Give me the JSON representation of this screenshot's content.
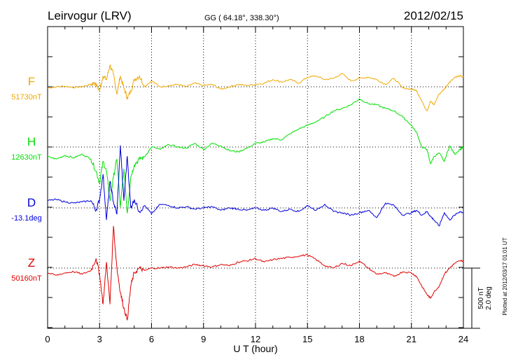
{
  "header": {
    "station": "Leirvogur (LRV)",
    "coords": "GG ( 64.18°, 338.30°)",
    "date": "2012/02/15"
  },
  "footer": {
    "plotted": "Plotted at 2012/03/17 01:01 UT"
  },
  "chart_data": {
    "type": "line",
    "xlabel": "U T (hour)",
    "xlim": [
      0,
      24
    ],
    "xticks": [
      "0",
      "3",
      "6",
      "9",
      "12",
      "15",
      "18",
      "21",
      "24"
    ],
    "scale_bar": {
      "nT": "500 nT",
      "deg": "2.0 deg"
    },
    "colors": {
      "F": "#f0a800",
      "H": "#00e000",
      "D": "#0000dd",
      "Z": "#e00000"
    },
    "series": [
      {
        "name": "F",
        "baseline": "51730nT",
        "x": [
          0,
          0.5,
          1,
          1.5,
          2,
          2.5,
          2.7,
          3,
          3.2,
          3.4,
          3.6,
          3.8,
          4,
          4.2,
          4.4,
          4.6,
          4.8,
          5,
          5.3,
          5.6,
          6,
          6.5,
          7,
          7.5,
          8,
          8.5,
          9,
          9.5,
          10,
          10.5,
          11,
          11.5,
          12,
          12.5,
          13,
          13.5,
          14,
          14.5,
          15,
          15.5,
          16,
          16.5,
          17,
          17.5,
          18,
          18.5,
          19,
          19.5,
          20,
          20.5,
          21,
          21.3,
          21.6,
          21.9,
          22.1,
          22.3,
          22.6,
          22.9,
          23.2,
          23.5,
          23.8,
          24
        ],
        "values": [
          -10,
          0,
          5,
          -5,
          0,
          20,
          35,
          -30,
          90,
          60,
          180,
          100,
          -60,
          90,
          -10,
          -90,
          -40,
          60,
          90,
          0,
          50,
          0,
          10,
          20,
          0,
          30,
          10,
          20,
          -20,
          0,
          20,
          10,
          20,
          30,
          60,
          40,
          60,
          30,
          80,
          90,
          60,
          70,
          110,
          50,
          70,
          80,
          60,
          20,
          70,
          -10,
          -20,
          -30,
          -120,
          -200,
          -120,
          -150,
          -60,
          -20,
          40,
          80,
          90,
          80
        ]
      },
      {
        "name": "H",
        "baseline": "12630nT",
        "x": [
          0,
          0.5,
          1,
          1.5,
          2,
          2.5,
          2.8,
          3,
          3.2,
          3.4,
          3.6,
          3.8,
          4,
          4.2,
          4.4,
          4.6,
          4.8,
          5,
          5.3,
          5.6,
          6,
          6.5,
          7,
          7.5,
          8,
          8.5,
          9,
          9.5,
          10,
          10.5,
          11,
          11.5,
          12,
          12.5,
          13,
          13.5,
          14,
          14.5,
          15,
          15.5,
          16,
          16.5,
          17,
          17.5,
          18,
          18.5,
          19,
          19.5,
          20,
          20.5,
          21,
          21.3,
          21.6,
          21.9,
          22.1,
          22.3,
          22.6,
          22.9,
          23.2,
          23.5,
          23.8,
          24
        ],
        "values": [
          -80,
          -100,
          -70,
          -90,
          -60,
          -100,
          -200,
          -300,
          -120,
          -200,
          -450,
          -250,
          -100,
          -500,
          -180,
          -550,
          -250,
          -150,
          -100,
          -80,
          0,
          -20,
          20,
          0,
          -10,
          30,
          -20,
          30,
          10,
          -30,
          -40,
          -10,
          30,
          40,
          70,
          60,
          110,
          150,
          180,
          210,
          250,
          300,
          320,
          350,
          400,
          360,
          350,
          320,
          300,
          250,
          180,
          120,
          0,
          -20,
          -140,
          -80,
          -50,
          -120,
          10,
          -60,
          -20,
          0
        ]
      },
      {
        "name": "D",
        "baseline": "-13.1deg",
        "x": [
          0,
          0.5,
          1,
          1.5,
          2,
          2.5,
          2.8,
          3,
          3.2,
          3.4,
          3.6,
          3.8,
          4,
          4.2,
          4.4,
          4.6,
          4.8,
          5,
          5.3,
          5.6,
          6,
          6.5,
          7,
          7.5,
          8,
          8.5,
          9,
          9.5,
          10,
          10.5,
          11,
          11.5,
          12,
          12.5,
          13,
          13.5,
          14,
          14.5,
          15,
          15.5,
          16,
          16.5,
          17,
          17.5,
          18,
          18.5,
          19,
          19.5,
          20,
          20.5,
          21,
          21.3,
          21.6,
          21.9,
          22.1,
          22.3,
          22.6,
          22.9,
          23.2,
          23.5,
          23.8,
          24
        ],
        "values": [
          60,
          70,
          50,
          40,
          50,
          60,
          -20,
          70,
          280,
          -100,
          220,
          50,
          -50,
          520,
          60,
          430,
          0,
          70,
          -30,
          20,
          -50,
          30,
          20,
          0,
          10,
          -10,
          0,
          10,
          -20,
          0,
          -10,
          -20,
          0,
          -20,
          0,
          -30,
          -10,
          -30,
          20,
          -20,
          30,
          -30,
          -40,
          -60,
          -40,
          -20,
          -80,
          40,
          20,
          -60,
          -40,
          -20,
          -60,
          -30,
          -70,
          -100,
          -150,
          -40,
          -100,
          -60,
          -30,
          -40
        ]
      },
      {
        "name": "Z",
        "baseline": "50160nT",
        "x": [
          0,
          0.5,
          1,
          1.5,
          2,
          2.5,
          2.8,
          3,
          3.2,
          3.4,
          3.6,
          3.8,
          4,
          4.2,
          4.4,
          4.6,
          4.8,
          5,
          5.3,
          5.6,
          6,
          6.5,
          7,
          7.5,
          8,
          8.5,
          9,
          9.5,
          10,
          10.5,
          11,
          11.5,
          12,
          12.5,
          13,
          13.5,
          14,
          14.5,
          15,
          15.5,
          16,
          16.5,
          17,
          17.5,
          18,
          18.5,
          19,
          19.5,
          20,
          20.5,
          21,
          21.3,
          21.6,
          21.9,
          22.1,
          22.3,
          22.6,
          22.9,
          23.2,
          23.5,
          23.8,
          24
        ],
        "values": [
          -40,
          -60,
          -40,
          -30,
          -50,
          -20,
          80,
          -50,
          -300,
          50,
          -300,
          350,
          0,
          -200,
          -330,
          -430,
          -150,
          -40,
          0,
          -20,
          0,
          0,
          10,
          0,
          10,
          30,
          20,
          10,
          30,
          20,
          50,
          60,
          80,
          50,
          70,
          80,
          90,
          100,
          110,
          70,
          20,
          0,
          40,
          20,
          60,
          0,
          -50,
          -40,
          -70,
          -30,
          -40,
          -70,
          -150,
          -220,
          -250,
          -200,
          -150,
          -50,
          0,
          40,
          60,
          60
        ]
      }
    ]
  }
}
